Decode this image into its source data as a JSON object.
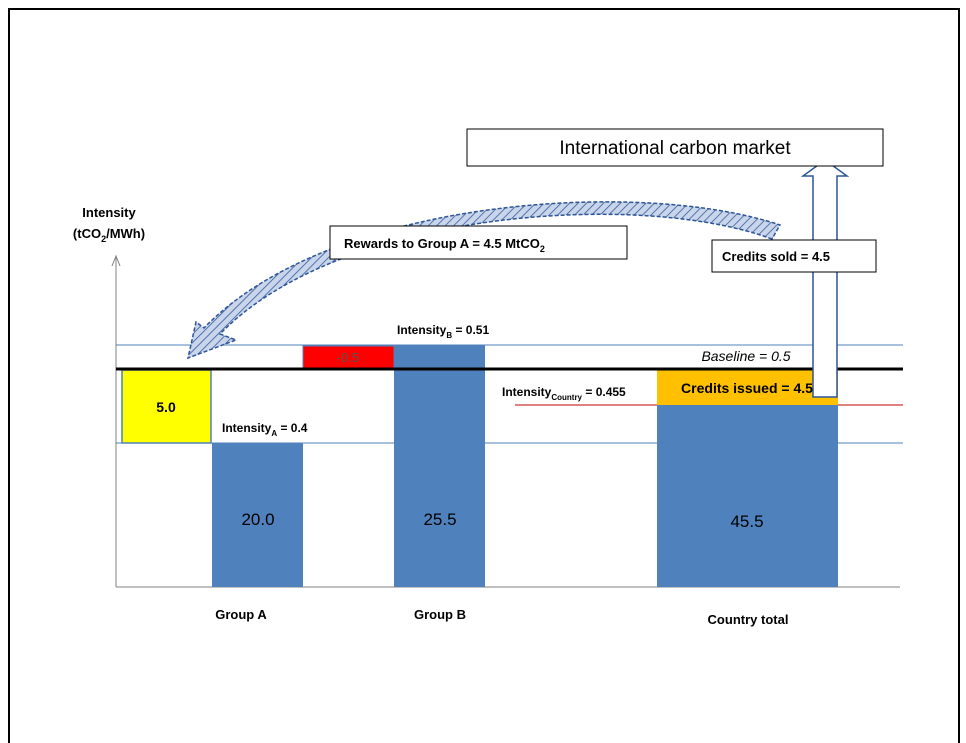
{
  "axis": {
    "title_line1": "Intensity",
    "title_line2_pre": "(tCO",
    "title_line2_sub": "2",
    "title_line2_post": "/MWh)"
  },
  "market": {
    "label": "International carbon market"
  },
  "rewards": {
    "pre": "Rewards to Group A = 4.5 MtCO",
    "sub": "2"
  },
  "credits_sold": {
    "label": "Credits sold = 4.5"
  },
  "baseline": {
    "label": "Baseline = 0.5"
  },
  "group_a": {
    "name": "Group A",
    "value_label": "20.0",
    "surplus_label": "5.0",
    "intensity_pre": "Intensity",
    "intensity_sub": "A",
    "intensity_post": " = 0.4"
  },
  "group_b": {
    "name": "Group B",
    "value_label": "25.5",
    "deficit_label": "-0.5",
    "intensity_pre": "Intensity",
    "intensity_sub": "B",
    "intensity_post": " = 0.51"
  },
  "country": {
    "name": "Country total",
    "value_label": "45.5",
    "credits_issued_label": "Credits issued = 4.5",
    "intensity_pre": "Intensity",
    "intensity_sub": "Country",
    "intensity_post": " = 0.455"
  },
  "colors": {
    "bar": "#4f81bd",
    "surplus": "#ffff00",
    "deficit": "#ff0000",
    "credits": "#ffc000",
    "guide_line": "#4f81bd",
    "country_line": "#c00000",
    "arrow_fill": "#a6b8d8",
    "arrow_stroke": "#2e5597"
  }
}
